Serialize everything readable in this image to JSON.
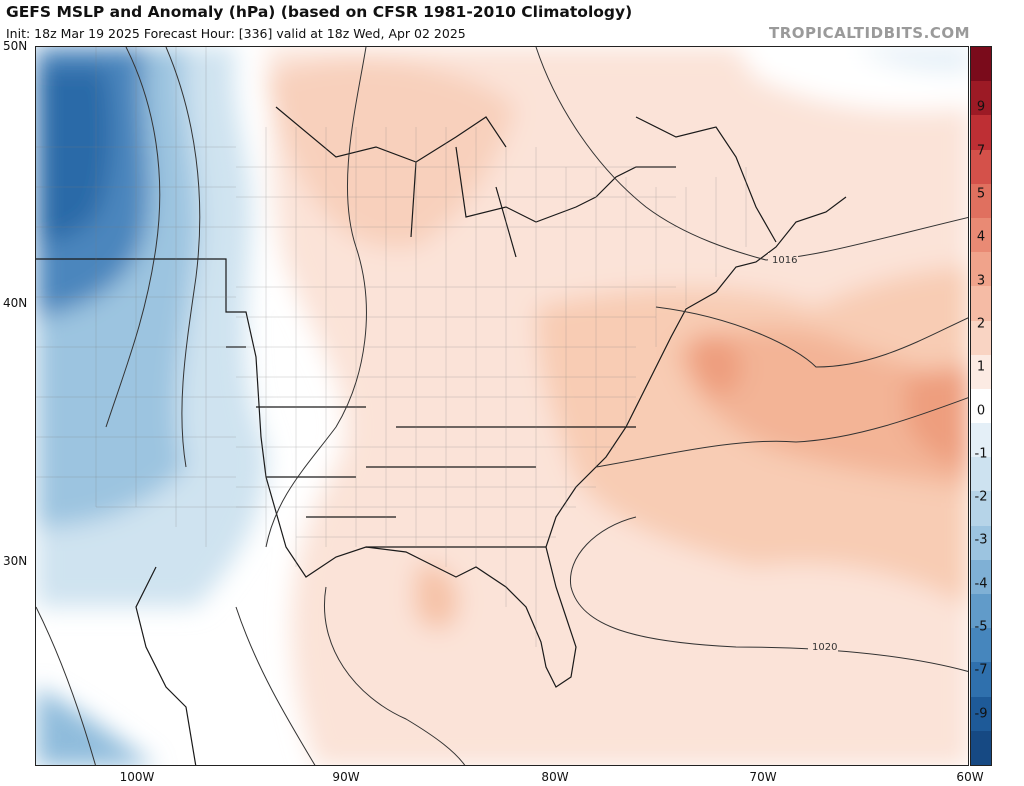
{
  "header": {
    "title": "GEFS MSLP and Anomaly (hPa) (based on CFSR 1981-2010 Climatology)",
    "subtitle": "Init: 18z Mar 19 2025   Forecast Hour: [336]   valid at 18z Wed, Apr 02 2025",
    "brand": "TROPICALTIDBITS.COM"
  },
  "map": {
    "lat_labels": [
      "50N",
      "40N",
      "30N"
    ],
    "lon_labels": [
      "100W",
      "90W",
      "80W",
      "70W",
      "60W"
    ],
    "isobar_labels": [
      "1016",
      "1020"
    ],
    "anomaly_colors": {
      "strong_negative": "#2e6aaa",
      "negative": "#8fbcdc",
      "weak_negative": "#d3e6f1",
      "neutral": "#ffffff",
      "weak_positive": "#fbe2d6",
      "positive": "#f6c3a8",
      "strong_positive": "#ee9e7e"
    }
  },
  "colorbar": {
    "labels": [
      "9",
      "7",
      "5",
      "4",
      "3",
      "2",
      "1",
      "0",
      "-1",
      "-2",
      "-3",
      "-4",
      "-5",
      "-7",
      "-9"
    ],
    "colors": [
      "#7a0b1b",
      "#9c1a25",
      "#be2f34",
      "#d4514a",
      "#e0705f",
      "#e98a74",
      "#f0a38b",
      "#f5bba5",
      "#f9d4c3",
      "#fcebe3",
      "#ffffff",
      "#e4eff7",
      "#cde2f0",
      "#b6d4e8",
      "#9cc4e0",
      "#7fb0d5",
      "#619bc9",
      "#4686bd",
      "#2f70ad",
      "#1e5a98",
      "#164983"
    ]
  }
}
